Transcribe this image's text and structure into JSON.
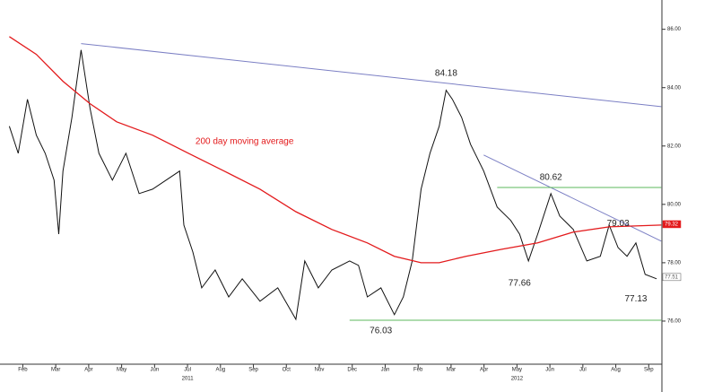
{
  "chart_data": {
    "type": "line",
    "xlim": [
      -0.42,
      19.4
    ],
    "ylim": [
      74.4,
      86.85
    ],
    "yticks": [
      {
        "value": 76,
        "label": "76.00"
      },
      {
        "value": 78,
        "label": "78.00"
      },
      {
        "value": 80,
        "label": "80.00"
      },
      {
        "value": 82,
        "label": "82.00"
      },
      {
        "value": 84,
        "label": "84.00"
      },
      {
        "value": 86,
        "label": "86.00"
      }
    ],
    "xticks": [
      {
        "value": 0,
        "label": "Feb"
      },
      {
        "value": 1,
        "label": "Mar"
      },
      {
        "value": 2,
        "label": "Apr"
      },
      {
        "value": 3,
        "label": "May"
      },
      {
        "value": 4,
        "label": "Jun"
      },
      {
        "value": 5,
        "label": "Jul"
      },
      {
        "value": 6,
        "label": "Aug"
      },
      {
        "value": 7,
        "label": "Sep"
      },
      {
        "value": 8,
        "label": "Oct"
      },
      {
        "value": 9,
        "label": "Nov"
      },
      {
        "value": 10,
        "label": "Dec"
      },
      {
        "value": 11,
        "label": "Jan"
      },
      {
        "value": 12,
        "label": "Feb"
      },
      {
        "value": 13,
        "label": "Mar"
      },
      {
        "value": 14,
        "label": "Apr"
      },
      {
        "value": 15,
        "label": "May"
      },
      {
        "value": 16,
        "label": "Jun"
      },
      {
        "value": 17,
        "label": "Jul"
      },
      {
        "value": 18,
        "label": "Aug"
      },
      {
        "value": 19,
        "label": "Sep"
      }
    ],
    "year_labels": [
      {
        "value": 5,
        "label": "2011"
      },
      {
        "value": 15,
        "label": "2012"
      }
    ],
    "series": [
      {
        "color": "#111111",
        "x": [
          -0.41,
          -0.14,
          0.14,
          0.41,
          0.68,
          0.95,
          1.09,
          1.22,
          1.49,
          1.77,
          2.04,
          2.31,
          2.72,
          3.13,
          3.53,
          3.94,
          4.35,
          4.76,
          4.89,
          5.16,
          5.43,
          5.84,
          6.25,
          6.66,
          7.2,
          7.74,
          8.29,
          8.56,
          8.97,
          9.38,
          9.92,
          10.19,
          10.46,
          10.87,
          11.28,
          11.55,
          11.82,
          12.09,
          12.36,
          12.64,
          12.85,
          13.04,
          13.32,
          13.59,
          13.99,
          14.4,
          14.81,
          15.08,
          15.35,
          15.63,
          16.03,
          16.3,
          16.71,
          17.12,
          17.53,
          17.8,
          18.07,
          18.34,
          18.61,
          18.89,
          19.24
        ],
        "values": [
          82.68,
          81.75,
          83.6,
          82.37,
          81.75,
          80.83,
          78.98,
          81.14,
          82.98,
          85.29,
          83.29,
          81.75,
          80.83,
          81.75,
          80.37,
          80.52,
          80.83,
          81.14,
          79.29,
          78.37,
          77.14,
          77.75,
          76.83,
          77.45,
          76.68,
          77.14,
          76.06,
          78.06,
          77.14,
          77.75,
          78.06,
          77.91,
          76.83,
          77.14,
          76.22,
          76.83,
          78.06,
          80.52,
          81.75,
          82.68,
          83.91,
          83.6,
          82.98,
          82.06,
          81.14,
          79.91,
          79.45,
          78.98,
          78.06,
          78.98,
          80.37,
          79.6,
          79.14,
          78.06,
          78.22,
          79.29,
          78.52,
          78.22,
          78.68,
          77.6,
          77.45
        ]
      },
      {
        "name": "200 day moving average",
        "color": "#e31a1c",
        "x": [
          -0.41,
          0.41,
          1.22,
          2.04,
          2.85,
          3.94,
          5.03,
          6.11,
          7.2,
          8.29,
          9.38,
          10.46,
          11.28,
          12.09,
          12.64,
          13.45,
          14.54,
          15.63,
          16.71,
          17.8,
          19.38
        ],
        "values": [
          85.75,
          85.14,
          84.22,
          83.45,
          82.83,
          82.37,
          81.75,
          81.14,
          80.52,
          79.75,
          79.14,
          78.68,
          78.22,
          78.0,
          78.0,
          78.22,
          78.46,
          78.68,
          79.05,
          79.23,
          79.29
        ],
        "label_x": 5.24,
        "label_y": 82.15
      }
    ],
    "lines": [
      {
        "color": "#7b7fc4",
        "x": [
          1.77,
          19.38
        ],
        "y": [
          85.51,
          83.35
        ]
      },
      {
        "color": "#7b7fc4",
        "x": [
          13.99,
          19.38
        ],
        "y": [
          81.69,
          78.74
        ]
      },
      {
        "color": "#5cb85c",
        "x": [
          14.4,
          19.38
        ],
        "y": [
          80.58,
          80.58
        ]
      },
      {
        "color": "#5cb85c",
        "x": [
          9.92,
          19.38
        ],
        "y": [
          76.03,
          76.03
        ]
      }
    ],
    "annotations": [
      {
        "label": "84.18",
        "x": 12.85,
        "y": 84.18,
        "position": "above"
      },
      {
        "label": "80.62",
        "x": 16.03,
        "y": 80.62,
        "position": "above"
      },
      {
        "label": "79.03",
        "x": 18.07,
        "y": 79.03,
        "position": "above"
      },
      {
        "label": "77.66",
        "x": 15.08,
        "y": 77.66,
        "position": "below"
      },
      {
        "label": "77.13",
        "x": 18.61,
        "y": 77.13,
        "position": "below"
      },
      {
        "label": "76.03",
        "x": 10.87,
        "y": 76.03,
        "position": "below"
      }
    ],
    "price_tags": [
      {
        "label": "79.32",
        "y": 79.32,
        "color": "#e31a1c"
      },
      {
        "label": "77.51",
        "y": 77.51,
        "color": "#555555"
      }
    ]
  }
}
